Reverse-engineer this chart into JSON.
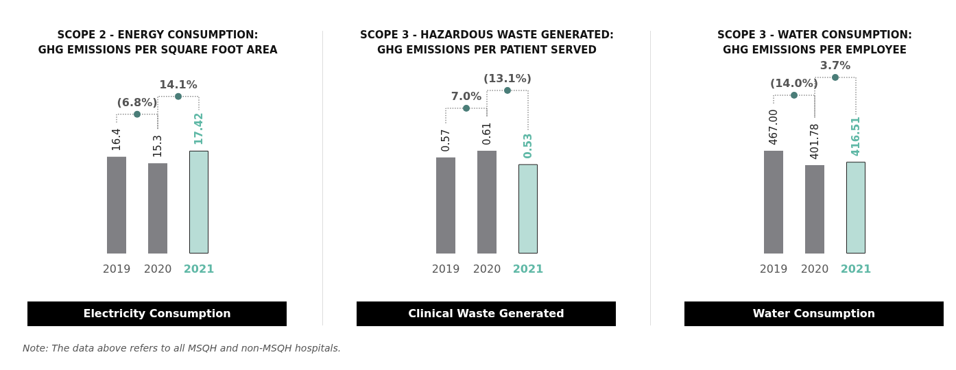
{
  "chart_data": [
    {
      "type": "bar",
      "title": "SCOPE 2 - ENERGY CONSUMPTION:\nGHG EMISSIONS PER SQUARE FOOT AREA",
      "xlabel": "Electricity Consumption",
      "categories": [
        "2019",
        "2020",
        "2021"
      ],
      "values": [
        16.4,
        15.3,
        17.42
      ],
      "value_labels": [
        "16.4",
        "15.3",
        "17.42"
      ],
      "colors": [
        "#808084",
        "#808084",
        "#b8ddd6"
      ],
      "annotations": [
        "(6.8%)",
        "14.1%"
      ]
    },
    {
      "type": "bar",
      "title": "SCOPE 3 - HAZARDOUS WASTE GENERATED:\nGHG EMISSIONS PER PATIENT SERVED",
      "xlabel": "Clinical Waste Generated",
      "categories": [
        "2019",
        "2020",
        "2021"
      ],
      "values": [
        0.57,
        0.61,
        0.53
      ],
      "data_labels": true,
      "colors": [
        "#808084",
        "#808084",
        "#b8ddd6"
      ],
      "annotations": [
        "7.0%",
        "(13.1%)"
      ]
    },
    {
      "type": "bar",
      "title": "SCOPE 3 - WATER CONSUMPTION:\nGHG EMISSIONS PER EMPLOYEE",
      "xlabel": "Water Consumption",
      "categories": [
        "2019",
        "2020",
        "2021"
      ],
      "values": [
        467.0,
        401.78,
        416.51
      ],
      "value_labels": [
        "467.00",
        "401.78",
        "416.51"
      ],
      "colors": [
        "#808084",
        "#808084",
        "#b8ddd6"
      ],
      "annotations": [
        "(14.0%)",
        "3.7%",
        "Note: The data above refers to all MSQH and non-MSQH hospitals."
      ]
    }
  ]
}
